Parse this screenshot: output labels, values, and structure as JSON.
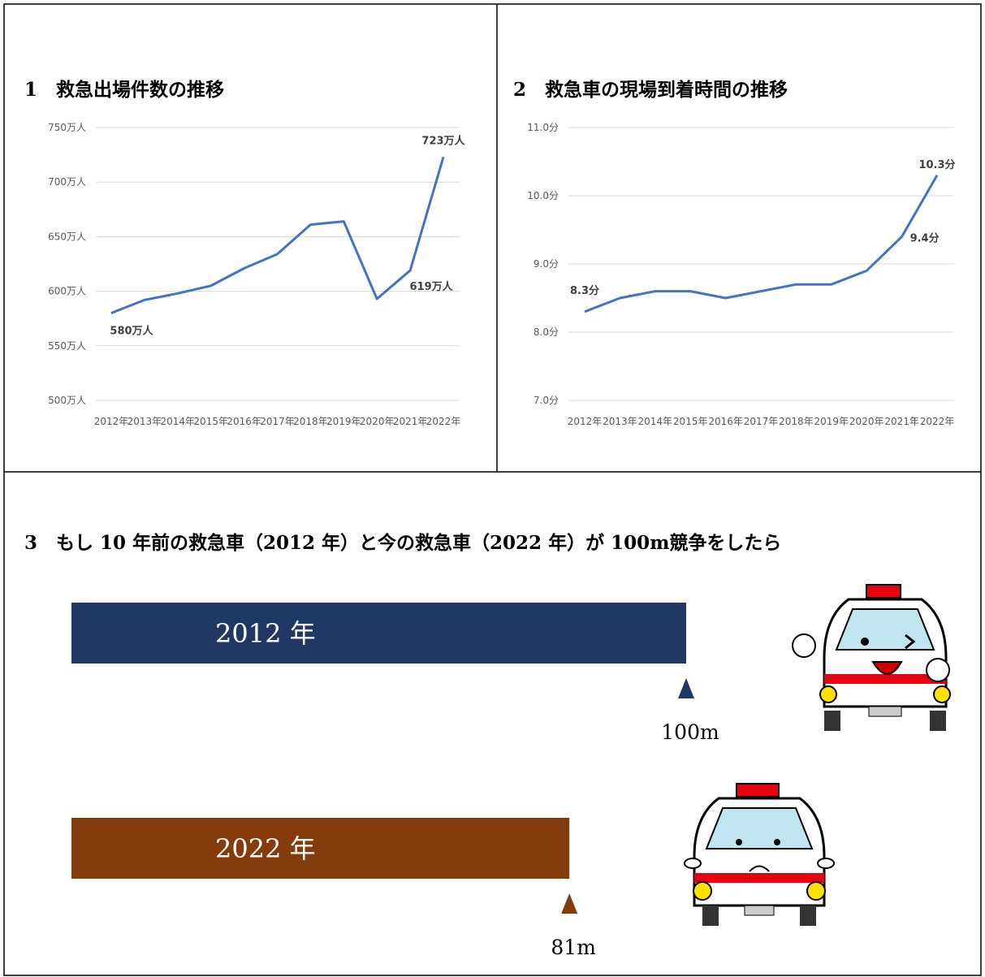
{
  "chart_data": [
    {
      "type": "line",
      "title": "1　救急出場件数の推移",
      "categories": [
        "2012年",
        "2013年",
        "2014年",
        "2015年",
        "2016年",
        "2017年",
        "2018年",
        "2019年",
        "2020年",
        "2021年",
        "2022年"
      ],
      "values": [
        580,
        592,
        598,
        605,
        621,
        634,
        661,
        664,
        593,
        619,
        723
      ],
      "value_labels": [
        "580万人",
        null,
        null,
        null,
        null,
        null,
        null,
        null,
        null,
        "619万人",
        "723万人"
      ],
      "color": "#4472c4",
      "ylim": [
        500,
        750
      ],
      "yticks": [
        {
          "value": 500,
          "label": "500万人"
        },
        {
          "value": 550,
          "label": "550万人"
        },
        {
          "value": 600,
          "label": "600万人"
        },
        {
          "value": 650,
          "label": "650万人"
        },
        {
          "value": 700,
          "label": "700万人"
        },
        {
          "value": 750,
          "label": "750万人"
        }
      ],
      "grid": true
    },
    {
      "type": "line",
      "title": "2　救急車の現場到着時間の推移",
      "categories": [
        "2012年",
        "2013年",
        "2014年",
        "2015年",
        "2016年",
        "2017年",
        "2018年",
        "2019年",
        "2020年",
        "2021年",
        "2022年"
      ],
      "values": [
        8.3,
        8.5,
        8.6,
        8.6,
        8.5,
        8.6,
        8.7,
        8.7,
        8.9,
        9.4,
        10.3
      ],
      "value_labels": [
        "8.3分",
        null,
        null,
        null,
        null,
        null,
        null,
        null,
        null,
        "9.4分",
        "10.3分"
      ],
      "color": "#4472c4",
      "ylim": [
        7,
        11
      ],
      "yticks": [
        {
          "value": 7,
          "label": "7.0分"
        },
        {
          "value": 8,
          "label": "8.0分"
        },
        {
          "value": 9,
          "label": "9.0分"
        },
        {
          "value": 10,
          "label": "10.0分"
        },
        {
          "value": 11,
          "label": "11.0分"
        }
      ],
      "grid": true
    },
    {
      "type": "hbar",
      "title": "3　もし 10 年前の救急車（2012 年）と今の救急車（2022 年）が 100m競争をしたら",
      "categories": [
        "2012 年",
        "2022 年"
      ],
      "values": [
        100,
        81
      ],
      "value_labels": [
        "100m",
        "81m"
      ],
      "colors": [
        "#203864",
        "#843c0c"
      ]
    }
  ]
}
